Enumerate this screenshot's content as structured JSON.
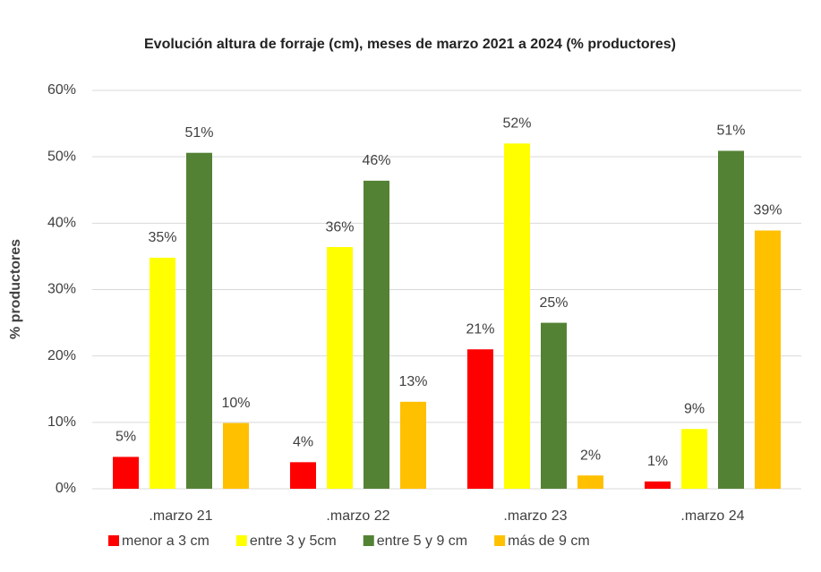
{
  "chart_data": {
    "type": "bar",
    "title": "Evolución altura de forraje (cm), meses de marzo 2021 a 2024 (% productores)",
    "y_label": "% productores",
    "categories": [
      ".marzo 21",
      ".marzo 22",
      ".marzo 23",
      ".marzo 24"
    ],
    "series": [
      {
        "name": "menor a 3 cm",
        "color": "#ff0000",
        "values": [
          4.8,
          4.0,
          21,
          1.1
        ],
        "value_labels": [
          "5%",
          "4%",
          "21%",
          "1%"
        ]
      },
      {
        "name": "entre 3 y 5cm",
        "color": "#ffff00",
        "values": [
          34.8,
          36.4,
          52,
          9
        ],
        "value_labels": [
          "35%",
          "36%",
          "52%",
          "9%"
        ]
      },
      {
        "name": "entre 5 y 9 cm",
        "color": "#548235",
        "values": [
          50.6,
          46.4,
          25,
          50.9
        ],
        "value_labels": [
          "51%",
          "46%",
          "25%",
          "51%"
        ]
      },
      {
        "name": "más de 9 cm",
        "color": "#ffc000",
        "values": [
          9.9,
          13.1,
          2,
          38.9
        ],
        "value_labels": [
          "10%",
          "13%",
          "2%",
          "39%"
        ]
      }
    ],
    "ylim": [
      0,
      60
    ],
    "yticks": [
      {
        "value": 0,
        "label": "0%"
      },
      {
        "value": 10,
        "label": "10%"
      },
      {
        "value": 20,
        "label": "20%"
      },
      {
        "value": 30,
        "label": "30%"
      },
      {
        "value": 40,
        "label": "40%"
      },
      {
        "value": 50,
        "label": "50%"
      },
      {
        "value": 60,
        "label": "60%"
      }
    ],
    "grid": true,
    "legend": "bottom"
  }
}
